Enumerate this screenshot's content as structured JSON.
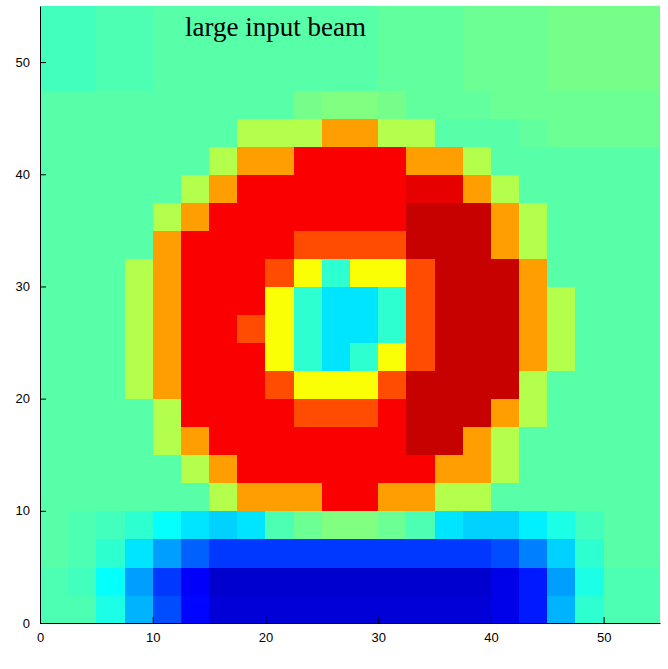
{
  "chart_data": {
    "type": "heatmap",
    "title": "large input beam",
    "xlim": [
      0,
      55
    ],
    "ylim": [
      0,
      55
    ],
    "xticks": [
      0,
      10,
      20,
      30,
      40,
      50
    ],
    "yticks": [
      0,
      10,
      20,
      30,
      40,
      50
    ],
    "zlim": [
      0,
      1
    ],
    "x": [
      1.25,
      3.75,
      6.25,
      8.75,
      11.25,
      13.75,
      16.25,
      18.75,
      21.25,
      23.75,
      26.25,
      28.75,
      31.25,
      33.75,
      36.25,
      38.75,
      41.25,
      43.75,
      46.25,
      48.75,
      51.25,
      53.75
    ],
    "y": [
      1.25,
      3.75,
      6.25,
      8.75,
      11.25,
      13.75,
      16.25,
      18.75,
      21.25,
      23.75,
      26.25,
      28.75,
      31.25,
      33.75,
      36.25,
      38.75,
      41.25,
      43.75,
      46.25,
      48.75,
      51.25,
      53.75
    ],
    "cells": [
      [
        0.45,
        0.45,
        0.4,
        0.3,
        0.2,
        0.13,
        0.08,
        0.08,
        0.08,
        0.08,
        0.08,
        0.08,
        0.08,
        0.08,
        0.08,
        0.08,
        0.1,
        0.15,
        0.3,
        0.42,
        0.45,
        0.45
      ],
      [
        0.45,
        0.44,
        0.38,
        0.28,
        0.18,
        0.12,
        0.07,
        0.07,
        0.07,
        0.07,
        0.07,
        0.07,
        0.07,
        0.07,
        0.07,
        0.07,
        0.1,
        0.15,
        0.28,
        0.4,
        0.45,
        0.45
      ],
      [
        0.46,
        0.45,
        0.42,
        0.35,
        0.28,
        0.22,
        0.18,
        0.18,
        0.18,
        0.18,
        0.18,
        0.18,
        0.18,
        0.18,
        0.18,
        0.18,
        0.2,
        0.25,
        0.33,
        0.42,
        0.46,
        0.46
      ],
      [
        0.46,
        0.45,
        0.44,
        0.42,
        0.38,
        0.35,
        0.33,
        0.35,
        0.45,
        0.48,
        0.5,
        0.5,
        0.48,
        0.45,
        0.35,
        0.33,
        0.33,
        0.36,
        0.4,
        0.44,
        0.46,
        0.46
      ],
      [
        0.46,
        0.46,
        0.46,
        0.46,
        0.46,
        0.46,
        0.55,
        0.72,
        0.72,
        0.72,
        0.88,
        0.88,
        0.72,
        0.72,
        0.55,
        0.55,
        0.46,
        0.46,
        0.46,
        0.46,
        0.46,
        0.46
      ],
      [
        0.46,
        0.46,
        0.46,
        0.46,
        0.46,
        0.55,
        0.72,
        0.88,
        0.88,
        0.88,
        0.88,
        0.88,
        0.88,
        0.88,
        0.72,
        0.72,
        0.55,
        0.46,
        0.46,
        0.46,
        0.46,
        0.46
      ],
      [
        0.46,
        0.46,
        0.46,
        0.46,
        0.55,
        0.72,
        0.88,
        0.88,
        0.88,
        0.88,
        0.88,
        0.88,
        0.88,
        0.93,
        0.93,
        0.72,
        0.55,
        0.46,
        0.46,
        0.46,
        0.46,
        0.46
      ],
      [
        0.46,
        0.46,
        0.46,
        0.46,
        0.55,
        0.88,
        0.88,
        0.88,
        0.88,
        0.8,
        0.8,
        0.8,
        0.88,
        0.93,
        0.93,
        0.93,
        0.72,
        0.55,
        0.46,
        0.46,
        0.46,
        0.46
      ],
      [
        0.46,
        0.46,
        0.46,
        0.55,
        0.72,
        0.88,
        0.88,
        0.88,
        0.8,
        0.62,
        0.62,
        0.62,
        0.8,
        0.93,
        0.93,
        0.93,
        0.93,
        0.55,
        0.46,
        0.46,
        0.46,
        0.46
      ],
      [
        0.46,
        0.46,
        0.46,
        0.55,
        0.72,
        0.88,
        0.88,
        0.88,
        0.62,
        0.42,
        0.35,
        0.42,
        0.62,
        0.8,
        0.93,
        0.93,
        0.93,
        0.72,
        0.55,
        0.46,
        0.46,
        0.46
      ],
      [
        0.46,
        0.46,
        0.46,
        0.55,
        0.72,
        0.88,
        0.88,
        0.8,
        0.62,
        0.42,
        0.35,
        0.35,
        0.42,
        0.8,
        0.93,
        0.93,
        0.93,
        0.72,
        0.55,
        0.46,
        0.46,
        0.46
      ],
      [
        0.46,
        0.46,
        0.46,
        0.55,
        0.72,
        0.88,
        0.88,
        0.88,
        0.62,
        0.42,
        0.35,
        0.35,
        0.42,
        0.8,
        0.93,
        0.93,
        0.93,
        0.72,
        0.55,
        0.46,
        0.46,
        0.46
      ],
      [
        0.46,
        0.46,
        0.46,
        0.55,
        0.72,
        0.88,
        0.88,
        0.88,
        0.8,
        0.62,
        0.42,
        0.62,
        0.62,
        0.8,
        0.93,
        0.93,
        0.93,
        0.72,
        0.46,
        0.46,
        0.46,
        0.46
      ],
      [
        0.46,
        0.46,
        0.46,
        0.46,
        0.72,
        0.88,
        0.88,
        0.88,
        0.88,
        0.8,
        0.8,
        0.8,
        0.8,
        0.93,
        0.93,
        0.93,
        0.72,
        0.55,
        0.46,
        0.46,
        0.46,
        0.46
      ],
      [
        0.46,
        0.46,
        0.46,
        0.46,
        0.55,
        0.72,
        0.88,
        0.88,
        0.88,
        0.88,
        0.88,
        0.88,
        0.88,
        0.93,
        0.93,
        0.93,
        0.72,
        0.55,
        0.46,
        0.46,
        0.46,
        0.46
      ],
      [
        0.46,
        0.46,
        0.46,
        0.46,
        0.46,
        0.55,
        0.72,
        0.88,
        0.88,
        0.88,
        0.88,
        0.88,
        0.88,
        0.9,
        0.9,
        0.72,
        0.55,
        0.46,
        0.46,
        0.46,
        0.46,
        0.46
      ],
      [
        0.46,
        0.46,
        0.46,
        0.46,
        0.46,
        0.46,
        0.55,
        0.72,
        0.72,
        0.88,
        0.88,
        0.88,
        0.88,
        0.72,
        0.72,
        0.55,
        0.46,
        0.46,
        0.46,
        0.46,
        0.46,
        0.46
      ],
      [
        0.46,
        0.46,
        0.46,
        0.46,
        0.46,
        0.46,
        0.46,
        0.55,
        0.55,
        0.55,
        0.72,
        0.72,
        0.55,
        0.55,
        0.46,
        0.46,
        0.46,
        0.47,
        0.48,
        0.48,
        0.48,
        0.48
      ],
      [
        0.46,
        0.46,
        0.46,
        0.46,
        0.46,
        0.46,
        0.46,
        0.46,
        0.46,
        0.49,
        0.5,
        0.5,
        0.49,
        0.47,
        0.47,
        0.47,
        0.48,
        0.48,
        0.48,
        0.48,
        0.48,
        0.48
      ],
      [
        0.44,
        0.44,
        0.45,
        0.45,
        0.46,
        0.46,
        0.46,
        0.46,
        0.46,
        0.46,
        0.46,
        0.46,
        0.47,
        0.47,
        0.47,
        0.48,
        0.48,
        0.48,
        0.49,
        0.49,
        0.49,
        0.49
      ],
      [
        0.44,
        0.44,
        0.45,
        0.45,
        0.46,
        0.46,
        0.46,
        0.46,
        0.46,
        0.46,
        0.46,
        0.46,
        0.47,
        0.47,
        0.47,
        0.48,
        0.48,
        0.48,
        0.49,
        0.49,
        0.49,
        0.49
      ],
      [
        0.44,
        0.44,
        0.45,
        0.45,
        0.46,
        0.46,
        0.46,
        0.46,
        0.46,
        0.46,
        0.46,
        0.46,
        0.47,
        0.47,
        0.47,
        0.48,
        0.48,
        0.48,
        0.49,
        0.49,
        0.49,
        0.49
      ]
    ]
  }
}
